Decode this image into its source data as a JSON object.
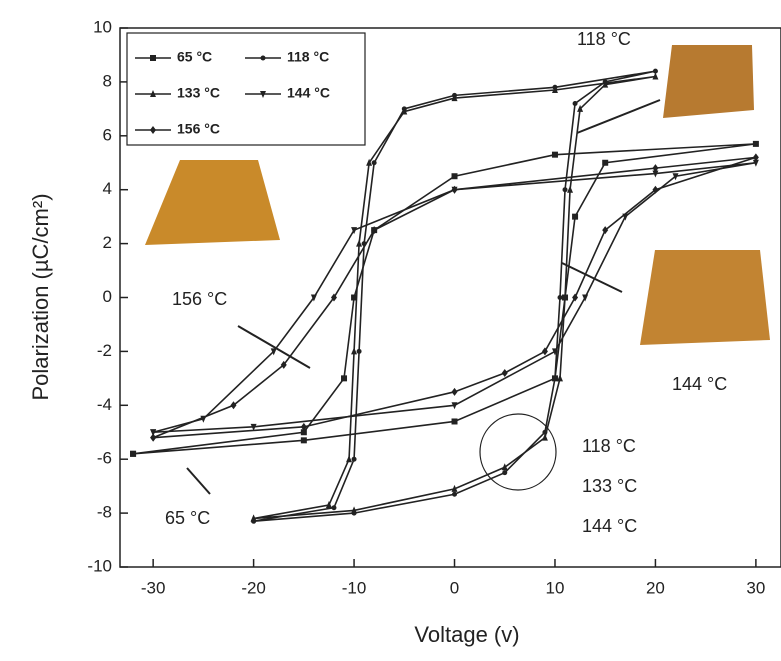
{
  "chart_data": {
    "type": "line",
    "x_label": "Voltage (v)",
    "y_label": "Polarization (µC/cm²)",
    "xlim": [
      -33.3,
      32.5
    ],
    "ylim": [
      -10,
      10
    ],
    "xticks": [
      -30,
      -20,
      -10,
      0,
      10,
      20,
      30
    ],
    "yticks": [
      -10,
      -8,
      -6,
      -4,
      -2,
      0,
      2,
      4,
      6,
      8,
      10
    ],
    "series": [
      {
        "name": "65 °C",
        "color": "#222222",
        "marker": "square",
        "x": [
          -32,
          -15,
          0,
          10,
          11,
          12,
          15,
          30,
          10,
          0,
          -8,
          -10,
          -11,
          -15,
          -32
        ],
        "y": [
          -5.8,
          -5.3,
          -4.6,
          -3,
          0,
          3,
          5,
          5.7,
          5.3,
          4.5,
          2.5,
          0,
          -3,
          -5,
          -5.8
        ]
      },
      {
        "name": "118 °C",
        "color": "#222222",
        "marker": "circle",
        "x": [
          -20,
          -10,
          0,
          5,
          9,
          10,
          10.5,
          11,
          12,
          15,
          20,
          10,
          0,
          -5,
          -8,
          -9,
          -9.5,
          -10,
          -12,
          -20
        ],
        "y": [
          -8.3,
          -8,
          -7.3,
          -6.5,
          -5,
          -3,
          0,
          4,
          7.2,
          8,
          8.4,
          7.8,
          7.5,
          7,
          5,
          2,
          -2,
          -6,
          -7.8,
          -8.3
        ]
      },
      {
        "name": "133 °C",
        "color": "#222222",
        "marker": "triangle-up",
        "x": [
          -20,
          -10,
          0,
          5,
          9,
          10.5,
          11,
          11.5,
          12.5,
          15,
          20,
          10,
          0,
          -5,
          -8.5,
          -9.5,
          -10,
          -10.5,
          -12.5,
          -20
        ],
        "y": [
          -8.2,
          -7.9,
          -7.1,
          -6.3,
          -5.2,
          -3,
          0,
          4,
          7,
          7.9,
          8.2,
          7.7,
          7.4,
          6.9,
          5,
          2,
          -2,
          -6,
          -7.7,
          -8.2
        ]
      },
      {
        "name": "144 °C",
        "color": "#222222",
        "marker": "triangle-down",
        "x": [
          -30,
          -20,
          0,
          10,
          13,
          17,
          22,
          30,
          20,
          0,
          -10,
          -14,
          -18,
          -25,
          -30
        ],
        "y": [
          -5,
          -4.8,
          -4,
          -2,
          0,
          3,
          4.5,
          5,
          4.6,
          4,
          2.5,
          0,
          -2,
          -4.5,
          -5
        ]
      },
      {
        "name": "156 °C",
        "color": "#222222",
        "marker": "diamond",
        "x": [
          -30,
          -15,
          0,
          5,
          9,
          12,
          15,
          20,
          30,
          20,
          0,
          -8,
          -12,
          -17,
          -22,
          -30
        ],
        "y": [
          -5.2,
          -4.8,
          -3.5,
          -2.8,
          -2,
          0,
          2.5,
          4,
          5.2,
          4.8,
          4,
          2.5,
          0,
          -2.5,
          -4,
          -5.2
        ]
      }
    ],
    "annotations": [
      "118 °C",
      "156 °C",
      "144 °C",
      "65 °C",
      "118 °C",
      "133 °C",
      "144 °C"
    ]
  }
}
